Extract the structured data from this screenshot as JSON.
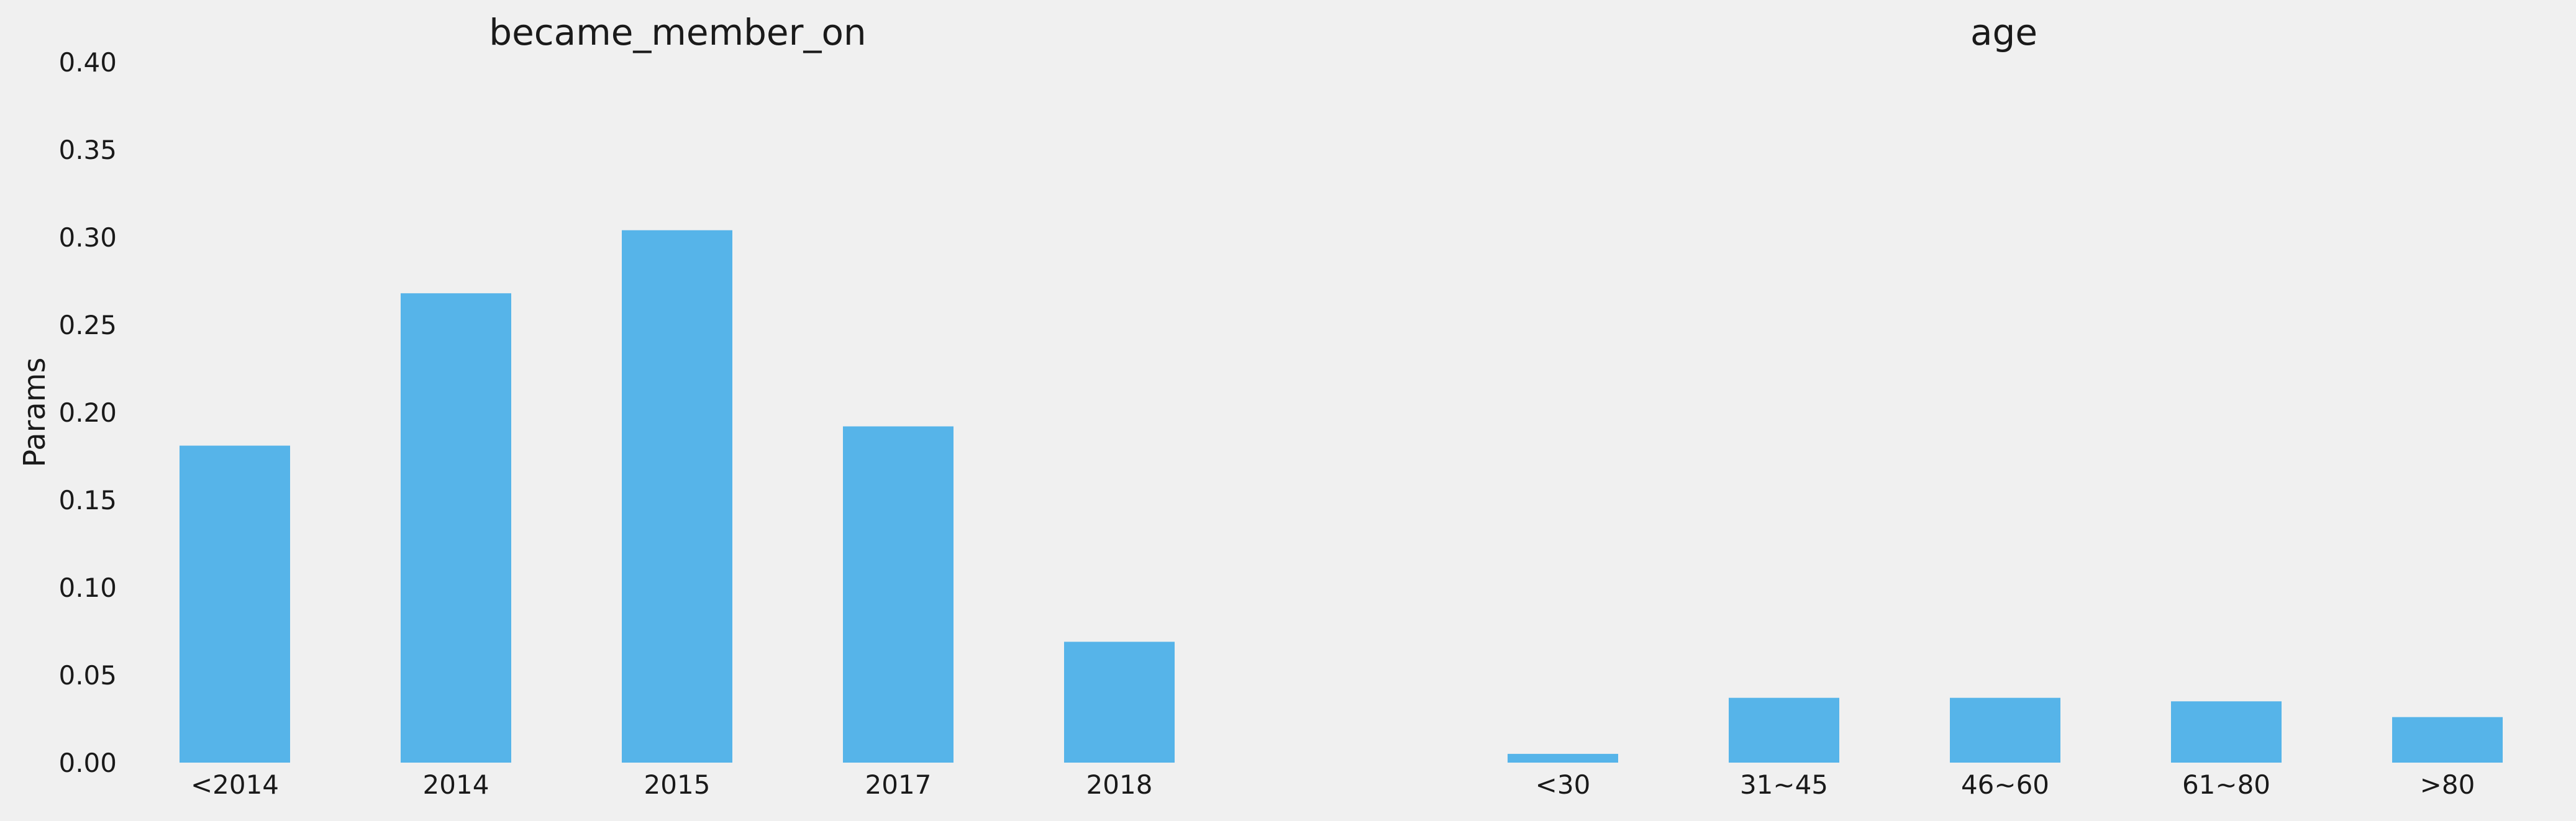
{
  "colors": {
    "background": "#f0f0f0",
    "bar": "#56b4e9",
    "text": "#1a1a1a"
  },
  "chart_data": [
    {
      "type": "bar",
      "title": "became_member_on",
      "ylabel": "Params",
      "ylim": [
        0,
        0.4
      ],
      "yticks": [
        "0.00",
        "0.05",
        "0.10",
        "0.15",
        "0.20",
        "0.25",
        "0.30",
        "0.35",
        "0.40"
      ],
      "grid": false,
      "categories": [
        "<2014",
        "2014",
        "2015",
        "2017",
        "2018"
      ],
      "values": [
        0.181,
        0.268,
        0.304,
        0.192,
        0.069
      ]
    },
    {
      "type": "bar",
      "title": "age",
      "ylim": [
        0,
        0.4
      ],
      "grid": false,
      "shared_y": true,
      "categories": [
        "<30",
        "31~45",
        "46~60",
        "61~80",
        ">80"
      ],
      "values": [
        0.005,
        0.037,
        0.037,
        0.035,
        0.026
      ]
    }
  ]
}
